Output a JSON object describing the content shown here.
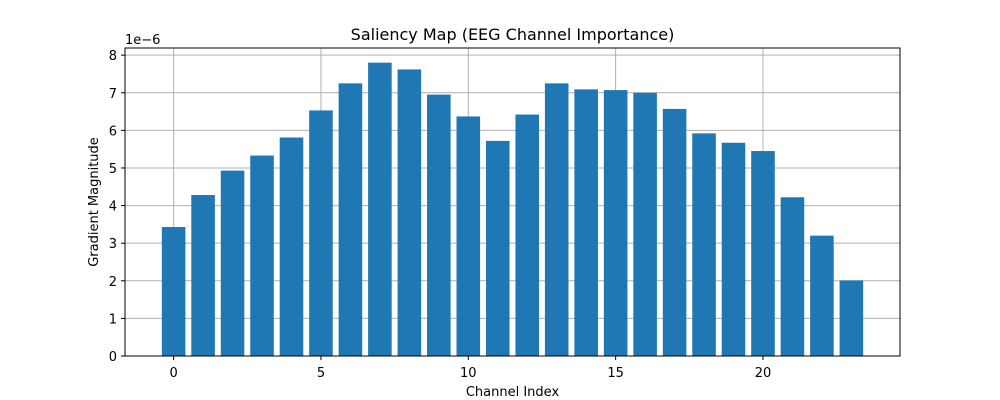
{
  "chart_data": {
    "type": "bar",
    "title": "Saliency Map (EEG Channel Importance)",
    "xlabel": "Channel Index",
    "ylabel": "Gradient Magnitude",
    "y_offset_label": "1e−6",
    "x": [
      0,
      1,
      2,
      3,
      4,
      5,
      6,
      7,
      8,
      9,
      10,
      11,
      12,
      13,
      14,
      15,
      16,
      17,
      18,
      19,
      20,
      21,
      22,
      23
    ],
    "values": [
      3.43,
      4.28,
      4.93,
      5.33,
      5.81,
      6.53,
      7.25,
      7.8,
      7.62,
      6.95,
      6.37,
      5.72,
      6.42,
      7.25,
      7.09,
      7.07,
      7.0,
      6.57,
      5.92,
      5.67,
      5.45,
      4.22,
      3.2,
      2.01
    ],
    "xticks": [
      "0",
      "5",
      "10",
      "15",
      "20"
    ],
    "yticks": [
      "0",
      "1",
      "2",
      "3",
      "4",
      "5",
      "6",
      "7",
      "8"
    ],
    "xlim": [
      -1.65,
      24.65
    ],
    "ylim": [
      0,
      8.19
    ],
    "grid": true,
    "bar_color": "#1f77b4"
  }
}
